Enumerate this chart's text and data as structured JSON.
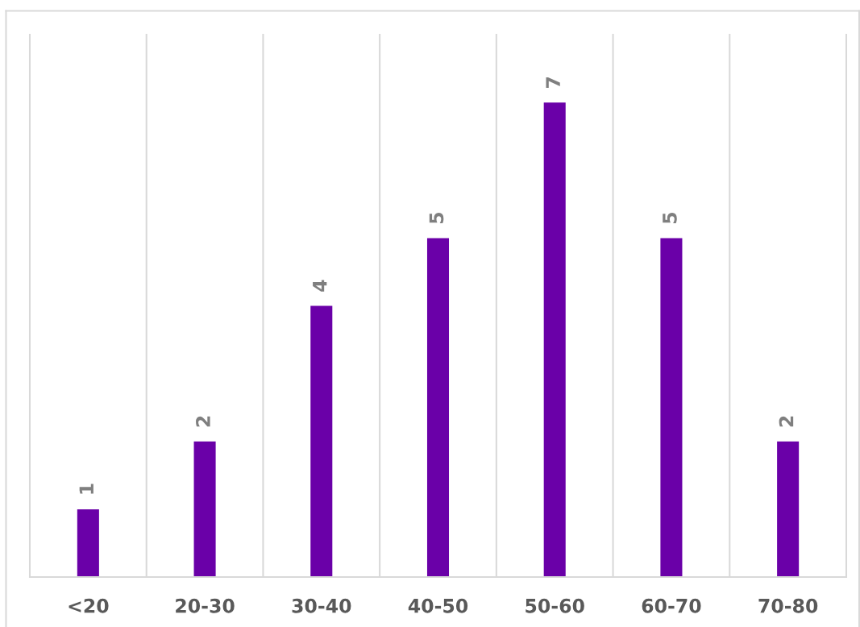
{
  "chart_data": {
    "type": "bar",
    "categories": [
      "<20",
      "20-30",
      "30-40",
      "40-50",
      "50-60",
      "60-70",
      "70-80"
    ],
    "values": [
      1,
      2,
      4,
      5,
      7,
      5,
      2
    ],
    "color": "#6a00a8",
    "ylim": [
      0,
      8
    ],
    "data_labels": true,
    "grid": "x",
    "tick_labels": "x"
  }
}
